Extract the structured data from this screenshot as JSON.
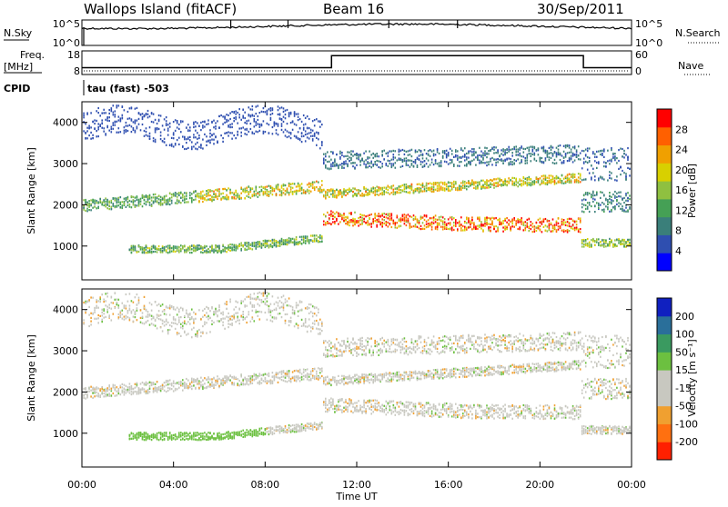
{
  "header": {
    "station": "Wallops Island (fitACF)",
    "beam": "Beam 16",
    "date": "30/Sep/2011"
  },
  "side_labels": {
    "nsky": "N.Sky",
    "nsearch": "N.Search",
    "freq_line1": "Freq.",
    "freq_line2": "[MHz]",
    "nave": "Nave",
    "cpid": "CPID",
    "cpid_value": "tau (fast) -503"
  },
  "chart_data": [
    {
      "type": "line",
      "name": "noise-panel",
      "ylabel_left": "N.Sky",
      "ylabel_right": "N.Search",
      "left_ticks": [
        "10^5",
        "10^0"
      ],
      "right_ticks": [
        "10^5",
        "10^0"
      ],
      "xlim": [
        0,
        24
      ],
      "series_hint": "N.Sky noise level near 10^4, spikes at 06:30, 09:00, 13:30, 16:30"
    },
    {
      "type": "line",
      "name": "freq-nave-panel",
      "ylabel_left": "Freq. [MHz]",
      "ylabel_right": "Nave",
      "left_ticks": [
        "18",
        "8"
      ],
      "right_ticks": [
        "60",
        "0"
      ],
      "xlim": [
        0,
        24
      ],
      "freq_segments": [
        {
          "start": 0.0,
          "end": 10.9,
          "value": 10.5
        },
        {
          "start": 10.9,
          "end": 21.9,
          "value": 16.5
        },
        {
          "start": 21.9,
          "end": 24.0,
          "value": 10.5
        }
      ]
    },
    {
      "type": "heatmap",
      "name": "power-panel",
      "ylabel": "Slant Range [km]",
      "colorbar_label": "Power [dB]",
      "y_ticks": [
        1000,
        2000,
        3000,
        4000
      ],
      "ylim": [
        180,
        4500
      ],
      "colorbar_ticks": [
        4,
        8,
        12,
        16,
        20,
        24,
        28
      ],
      "colorbar_range": [
        0,
        32
      ],
      "colorbar_colors": [
        "#0000ff",
        "#2f4fb0",
        "#3a7f7a",
        "#45a055",
        "#8fc040",
        "#d8d000",
        "#f0a000",
        "#ff6000",
        "#ff0000"
      ]
    },
    {
      "type": "heatmap",
      "name": "velocity-panel",
      "ylabel": "Slant Range [km]",
      "colorbar_label": "Velocity [m s⁻¹]",
      "y_ticks": [
        1000,
        2000,
        3000,
        4000
      ],
      "ylim": [
        180,
        4500
      ],
      "colorbar_ticks": [
        200,
        100,
        50,
        15,
        -15,
        -50,
        -100,
        -200
      ],
      "colorbar_colors": [
        "#1020c0",
        "#2a6f9a",
        "#3a9a60",
        "#6cc040",
        "#c8c8c0",
        "#c8c8c0",
        "#f0a030",
        "#ff7010",
        "#ff2000"
      ]
    }
  ],
  "x_axis": {
    "label": "Time UT",
    "ticks": [
      "00:00",
      "04:00",
      "08:00",
      "12:00",
      "16:00",
      "20:00",
      "00:00"
    ],
    "xlim": [
      0,
      24
    ]
  }
}
